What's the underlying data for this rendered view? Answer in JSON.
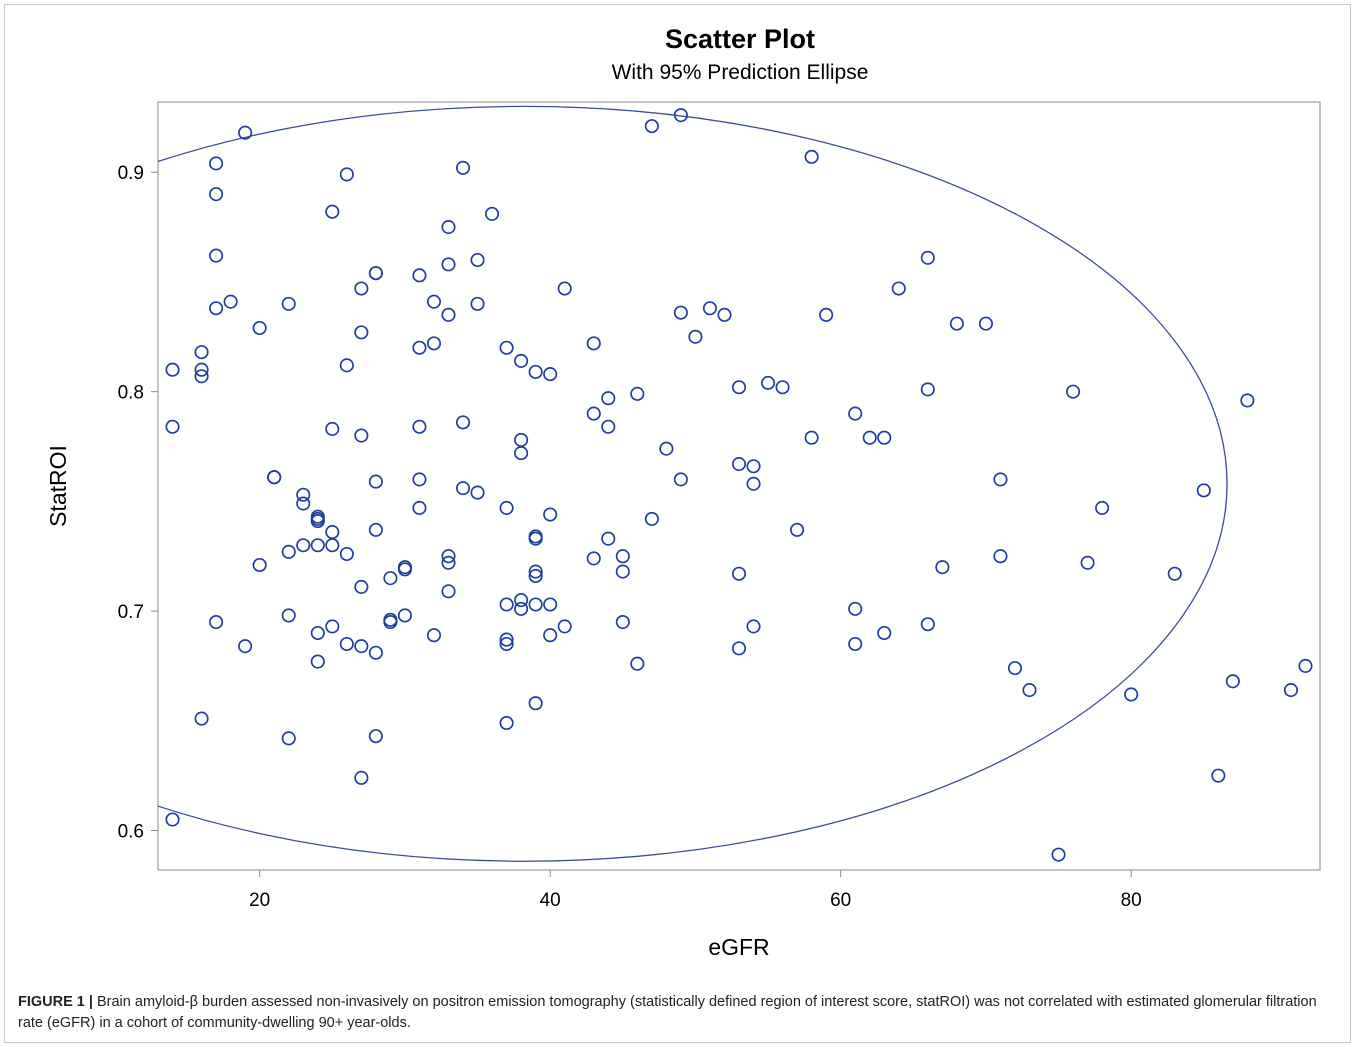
{
  "caption": {
    "label": "FIGURE 1 |",
    "text": " Brain amyloid-β burden assessed non-invasively on positron emission tomography (statistically defined region of interest score, statROI) was not correlated with estimated glomerular filtration rate (eGFR) in a cohort of community-dwelling 90+ year-olds."
  },
  "colors": {
    "marker": "#1f3f9f",
    "ellipse": "#3a4e94",
    "frame": "#8a8a8a",
    "text": "#000000"
  },
  "chart_data": {
    "type": "scatter",
    "title": "Scatter Plot",
    "subtitle": "With 95% Prediction Ellipse",
    "xlabel": "eGFR",
    "ylabel": "StatROI",
    "xlim": [
      13,
      93
    ],
    "ylim": [
      0.582,
      0.932
    ],
    "xticks": [
      20,
      40,
      60,
      80
    ],
    "yticks": [
      0.6,
      0.7,
      0.8,
      0.9
    ],
    "xtick_labels": [
      "20",
      "40",
      "60",
      "80"
    ],
    "ytick_labels": [
      "0.6",
      "0.7",
      "0.8",
      "0.9"
    ],
    "grid": false,
    "legend": "none",
    "ellipse": {
      "center": [
        38.2,
        0.758
      ],
      "semi_axes_data": [
        48.4,
        0.172
      ]
    },
    "points": [
      [
        14,
        0.81
      ],
      [
        14,
        0.784
      ],
      [
        14,
        0.605
      ],
      [
        16,
        0.818
      ],
      [
        16,
        0.81
      ],
      [
        16,
        0.807
      ],
      [
        16,
        0.651
      ],
      [
        17,
        0.904
      ],
      [
        17,
        0.89
      ],
      [
        17,
        0.862
      ],
      [
        17,
        0.838
      ],
      [
        17,
        0.695
      ],
      [
        18,
        0.841
      ],
      [
        19,
        0.918
      ],
      [
        19,
        0.684
      ],
      [
        20,
        0.829
      ],
      [
        20,
        0.721
      ],
      [
        21,
        0.761
      ],
      [
        21,
        0.761
      ],
      [
        22,
        0.84
      ],
      [
        22,
        0.727
      ],
      [
        22,
        0.698
      ],
      [
        22,
        0.642
      ],
      [
        23,
        0.753
      ],
      [
        23,
        0.749
      ],
      [
        23,
        0.73
      ],
      [
        24,
        0.743
      ],
      [
        24,
        0.741
      ],
      [
        24,
        0.742
      ],
      [
        24,
        0.73
      ],
      [
        24,
        0.69
      ],
      [
        24,
        0.677
      ],
      [
        25,
        0.882
      ],
      [
        25,
        0.783
      ],
      [
        25,
        0.736
      ],
      [
        25,
        0.73
      ],
      [
        25,
        0.693
      ],
      [
        26,
        0.899
      ],
      [
        26,
        0.812
      ],
      [
        26,
        0.726
      ],
      [
        26,
        0.685
      ],
      [
        27,
        0.847
      ],
      [
        27,
        0.827
      ],
      [
        27,
        0.78
      ],
      [
        27,
        0.711
      ],
      [
        27,
        0.684
      ],
      [
        27,
        0.624
      ],
      [
        28,
        0.854
      ],
      [
        28,
        0.854
      ],
      [
        28,
        0.759
      ],
      [
        28,
        0.737
      ],
      [
        28,
        0.681
      ],
      [
        28,
        0.643
      ],
      [
        29,
        0.715
      ],
      [
        29,
        0.695
      ],
      [
        29,
        0.696
      ],
      [
        30,
        0.72
      ],
      [
        30,
        0.719
      ],
      [
        30,
        0.698
      ],
      [
        31,
        0.853
      ],
      [
        31,
        0.82
      ],
      [
        31,
        0.784
      ],
      [
        31,
        0.76
      ],
      [
        31,
        0.747
      ],
      [
        32,
        0.841
      ],
      [
        32,
        0.822
      ],
      [
        32,
        0.689
      ],
      [
        33,
        0.875
      ],
      [
        33,
        0.858
      ],
      [
        33,
        0.835
      ],
      [
        33,
        0.725
      ],
      [
        33,
        0.722
      ],
      [
        33,
        0.709
      ],
      [
        34,
        0.902
      ],
      [
        34,
        0.786
      ],
      [
        34,
        0.756
      ],
      [
        35,
        0.86
      ],
      [
        35,
        0.84
      ],
      [
        35,
        0.754
      ],
      [
        36,
        0.881
      ],
      [
        37,
        0.82
      ],
      [
        37,
        0.747
      ],
      [
        37,
        0.703
      ],
      [
        37,
        0.687
      ],
      [
        37,
        0.685
      ],
      [
        37,
        0.649
      ],
      [
        38,
        0.814
      ],
      [
        38,
        0.778
      ],
      [
        38,
        0.772
      ],
      [
        38,
        0.705
      ],
      [
        38,
        0.701
      ],
      [
        39,
        0.809
      ],
      [
        39,
        0.734
      ],
      [
        39,
        0.733
      ],
      [
        39,
        0.718
      ],
      [
        39,
        0.716
      ],
      [
        39,
        0.703
      ],
      [
        39,
        0.658
      ],
      [
        40,
        0.808
      ],
      [
        40,
        0.744
      ],
      [
        40,
        0.703
      ],
      [
        40,
        0.689
      ],
      [
        41,
        0.847
      ],
      [
        41,
        0.693
      ],
      [
        43,
        0.822
      ],
      [
        43,
        0.79
      ],
      [
        43,
        0.724
      ],
      [
        44,
        0.797
      ],
      [
        44,
        0.784
      ],
      [
        44,
        0.733
      ],
      [
        45,
        0.725
      ],
      [
        45,
        0.718
      ],
      [
        45,
        0.695
      ],
      [
        46,
        0.799
      ],
      [
        46,
        0.676
      ],
      [
        47,
        0.921
      ],
      [
        47,
        0.742
      ],
      [
        48,
        0.774
      ],
      [
        49,
        0.926
      ],
      [
        49,
        0.836
      ],
      [
        49,
        0.76
      ],
      [
        50,
        0.825
      ],
      [
        51,
        0.838
      ],
      [
        52,
        0.835
      ],
      [
        53,
        0.802
      ],
      [
        53,
        0.767
      ],
      [
        53,
        0.717
      ],
      [
        53,
        0.683
      ],
      [
        54,
        0.766
      ],
      [
        54,
        0.758
      ],
      [
        54,
        0.693
      ],
      [
        55,
        0.804
      ],
      [
        56,
        0.802
      ],
      [
        57,
        0.737
      ],
      [
        58,
        0.907
      ],
      [
        58,
        0.779
      ],
      [
        59,
        0.835
      ],
      [
        61,
        0.79
      ],
      [
        61,
        0.701
      ],
      [
        61,
        0.685
      ],
      [
        62,
        0.779
      ],
      [
        63,
        0.779
      ],
      [
        63,
        0.69
      ],
      [
        64,
        0.847
      ],
      [
        66,
        0.861
      ],
      [
        66,
        0.801
      ],
      [
        66,
        0.694
      ],
      [
        67,
        0.72
      ],
      [
        68,
        0.831
      ],
      [
        70,
        0.831
      ],
      [
        71,
        0.76
      ],
      [
        71,
        0.725
      ],
      [
        72,
        0.674
      ],
      [
        73,
        0.664
      ],
      [
        75,
        0.589
      ],
      [
        76,
        0.8
      ],
      [
        77,
        0.722
      ],
      [
        78,
        0.747
      ],
      [
        80,
        0.662
      ],
      [
        83,
        0.717
      ],
      [
        85,
        0.755
      ],
      [
        86,
        0.625
      ],
      [
        87,
        0.668
      ],
      [
        88,
        0.796
      ],
      [
        91,
        0.664
      ],
      [
        92,
        0.675
      ]
    ]
  }
}
